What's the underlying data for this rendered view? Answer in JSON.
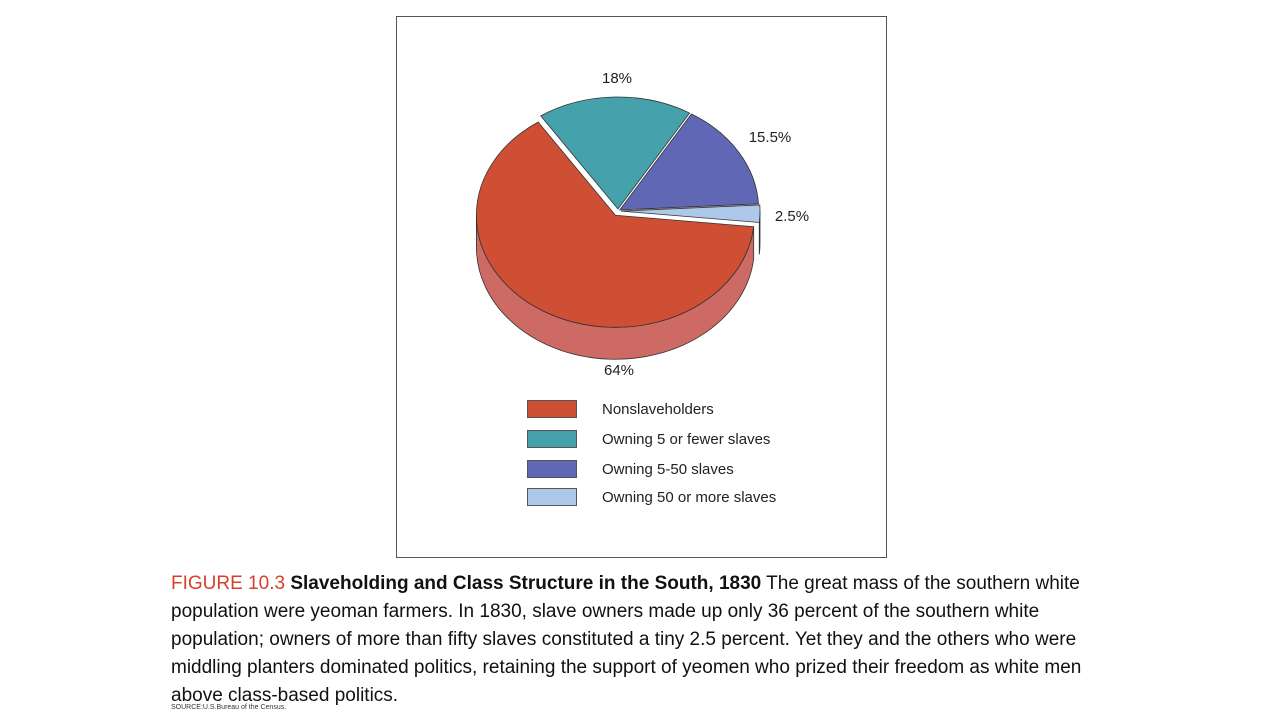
{
  "chart_data": {
    "type": "pie",
    "slices": [
      {
        "label": "Nonslaveholders",
        "value": 64,
        "value_label": "64%",
        "color": "#cf4f35",
        "side_color": "#cc6a63"
      },
      {
        "label": "Owning 5 or fewer slaves",
        "value": 18,
        "value_label": "18%",
        "color": "#45a2ad",
        "side_color": "#9fd3d6"
      },
      {
        "label": "Owning 5-50 slaves",
        "value": 15.5,
        "value_label": "15.5%",
        "color": "#6068b5",
        "side_color": "#4b5394"
      },
      {
        "label": "Owning 50 or more slaves",
        "value": 2.5,
        "value_label": "2.5%",
        "color": "#aec8ea",
        "side_color": "#7f8ea8"
      }
    ],
    "legend": {
      "placement": "bottom",
      "entries": [
        "Nonslaveholders",
        "Owning 5 or fewer slaves",
        "Owning 5-50 slaves",
        "Owning 50 or more slaves"
      ]
    },
    "title": "",
    "style": "3d-exploded"
  },
  "caption": {
    "figure_number": "FIGURE 10.3",
    "title": "Slaveholding and Class Structure in the South, 1830",
    "body": "The great mass of the southern white population were yeoman farmers. In 1830, slave owners made up only 36 percent of the southern white population; owners of more than fifty slaves constituted a tiny 2.5 percent. Yet they and the others who were middling planters dominated politics, retaining the support of yeomen who prized their freedom as white men above class-based politics."
  },
  "source": "SOURCE:U.S.Bureau of the Census."
}
